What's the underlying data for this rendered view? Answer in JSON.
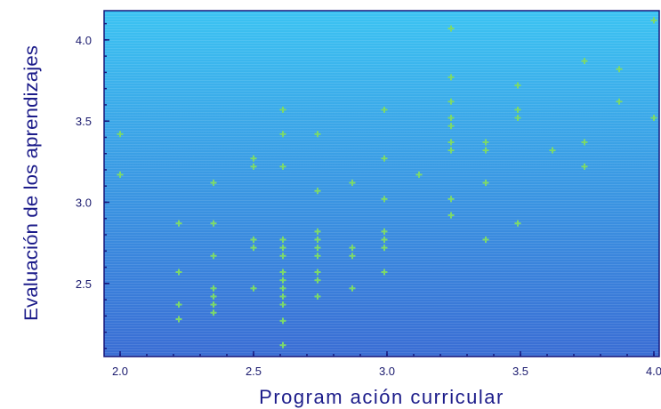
{
  "chart_data": {
    "type": "scatter",
    "xlabel": "Program ación curricular",
    "ylabel": "Evaluación de los aprendizajes",
    "xlim": [
      1.94,
      4.02
    ],
    "ylim": [
      2.05,
      4.18
    ],
    "x_ticks": [
      "2.0",
      "2.5",
      "3.0",
      "3.5",
      "4.0"
    ],
    "x_tick_values": [
      2.0,
      2.5,
      3.0,
      3.5,
      4.0
    ],
    "y_ticks": [
      "2.5",
      "3.0",
      "3.5",
      "4.0"
    ],
    "y_tick_values": [
      2.5,
      3.0,
      3.5,
      4.0
    ],
    "grid": false,
    "colors": {
      "plot_top": "#3bc3f2",
      "plot_bottom": "#3a6dd4",
      "frame": "#16167a",
      "points": "#7dd96a"
    },
    "series": [
      {
        "points": [
          [
            2.0,
            3.42
          ],
          [
            2.0,
            3.17
          ],
          [
            2.22,
            2.87
          ],
          [
            2.22,
            2.57
          ],
          [
            2.22,
            2.37
          ],
          [
            2.22,
            2.28
          ],
          [
            2.35,
            3.12
          ],
          [
            2.35,
            2.87
          ],
          [
            2.35,
            2.67
          ],
          [
            2.35,
            2.47
          ],
          [
            2.35,
            2.42
          ],
          [
            2.35,
            2.37
          ],
          [
            2.35,
            2.32
          ],
          [
            2.5,
            3.27
          ],
          [
            2.5,
            3.22
          ],
          [
            2.5,
            2.77
          ],
          [
            2.5,
            2.72
          ],
          [
            2.5,
            2.47
          ],
          [
            2.61,
            3.57
          ],
          [
            2.61,
            3.42
          ],
          [
            2.61,
            3.22
          ],
          [
            2.61,
            2.77
          ],
          [
            2.61,
            2.72
          ],
          [
            2.61,
            2.67
          ],
          [
            2.61,
            2.57
          ],
          [
            2.61,
            2.52
          ],
          [
            2.61,
            2.47
          ],
          [
            2.61,
            2.42
          ],
          [
            2.61,
            2.37
          ],
          [
            2.61,
            2.27
          ],
          [
            2.61,
            2.12
          ],
          [
            2.74,
            3.42
          ],
          [
            2.74,
            3.07
          ],
          [
            2.74,
            2.82
          ],
          [
            2.74,
            2.77
          ],
          [
            2.74,
            2.72
          ],
          [
            2.74,
            2.67
          ],
          [
            2.74,
            2.57
          ],
          [
            2.74,
            2.52
          ],
          [
            2.74,
            2.42
          ],
          [
            2.87,
            3.12
          ],
          [
            2.87,
            2.72
          ],
          [
            2.87,
            2.67
          ],
          [
            2.87,
            2.47
          ],
          [
            2.99,
            3.57
          ],
          [
            2.99,
            3.27
          ],
          [
            2.99,
            3.02
          ],
          [
            2.99,
            2.82
          ],
          [
            2.99,
            2.77
          ],
          [
            2.99,
            2.72
          ],
          [
            2.99,
            2.57
          ],
          [
            3.12,
            3.17
          ],
          [
            3.24,
            4.07
          ],
          [
            3.24,
            3.77
          ],
          [
            3.24,
            3.62
          ],
          [
            3.24,
            3.52
          ],
          [
            3.24,
            3.47
          ],
          [
            3.24,
            3.37
          ],
          [
            3.24,
            3.32
          ],
          [
            3.24,
            3.02
          ],
          [
            3.24,
            2.92
          ],
          [
            3.37,
            3.37
          ],
          [
            3.37,
            3.32
          ],
          [
            3.37,
            3.12
          ],
          [
            3.37,
            2.77
          ],
          [
            3.49,
            3.72
          ],
          [
            3.49,
            3.57
          ],
          [
            3.49,
            3.52
          ],
          [
            3.49,
            2.87
          ],
          [
            3.62,
            3.32
          ],
          [
            3.74,
            3.87
          ],
          [
            3.74,
            3.37
          ],
          [
            3.74,
            3.22
          ],
          [
            3.87,
            3.82
          ],
          [
            3.87,
            3.62
          ],
          [
            4.0,
            4.12
          ],
          [
            4.0,
            3.52
          ]
        ]
      }
    ]
  }
}
